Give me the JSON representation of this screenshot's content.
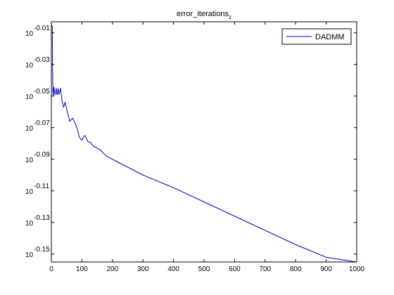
{
  "chart_data": {
    "type": "line",
    "title_main": "error_iterations",
    "title_sub": "z",
    "xlabel": "",
    "ylabel": "",
    "scale_y": "log10",
    "xlim": [
      0,
      1000
    ],
    "ylim_exponent": [
      -0.155,
      -0.003
    ],
    "x_ticks": [
      0,
      100,
      200,
      300,
      400,
      500,
      600,
      700,
      800,
      900,
      1000
    ],
    "y_tick_base": "10",
    "y_tick_exponents": [
      "-0.01",
      "-0.03",
      "-0.05",
      "-0.07",
      "-0.09",
      "-0.11",
      "-0.13",
      "-0.15"
    ],
    "grid": false,
    "legend_position": "top-right",
    "series": [
      {
        "name": "DADMM",
        "color": "#0000cc",
        "x": [
          1,
          3,
          4,
          5,
          6,
          8,
          10,
          12,
          14,
          16,
          18,
          20,
          22,
          25,
          28,
          30,
          35,
          40,
          45,
          50,
          55,
          60,
          65,
          70,
          75,
          80,
          85,
          90,
          95,
          100,
          105,
          110,
          115,
          120,
          125,
          130,
          140,
          150,
          160,
          170,
          180,
          200,
          250,
          300,
          400,
          500,
          600,
          700,
          800,
          900,
          1000
        ],
        "y_exponent": [
          -0.005,
          -0.006,
          -0.033,
          -0.047,
          -0.05,
          -0.044,
          -0.048,
          -0.049,
          -0.047,
          -0.045,
          -0.049,
          -0.049,
          -0.045,
          -0.049,
          -0.047,
          -0.045,
          -0.053,
          -0.057,
          -0.054,
          -0.058,
          -0.062,
          -0.066,
          -0.065,
          -0.064,
          -0.066,
          -0.068,
          -0.071,
          -0.075,
          -0.077,
          -0.078,
          -0.076,
          -0.075,
          -0.077,
          -0.079,
          -0.079,
          -0.08,
          -0.082,
          -0.083,
          -0.084,
          -0.086,
          -0.088,
          -0.09,
          -0.095,
          -0.1,
          -0.108,
          -0.117,
          -0.126,
          -0.135,
          -0.144,
          -0.152,
          -0.161
        ]
      }
    ]
  }
}
